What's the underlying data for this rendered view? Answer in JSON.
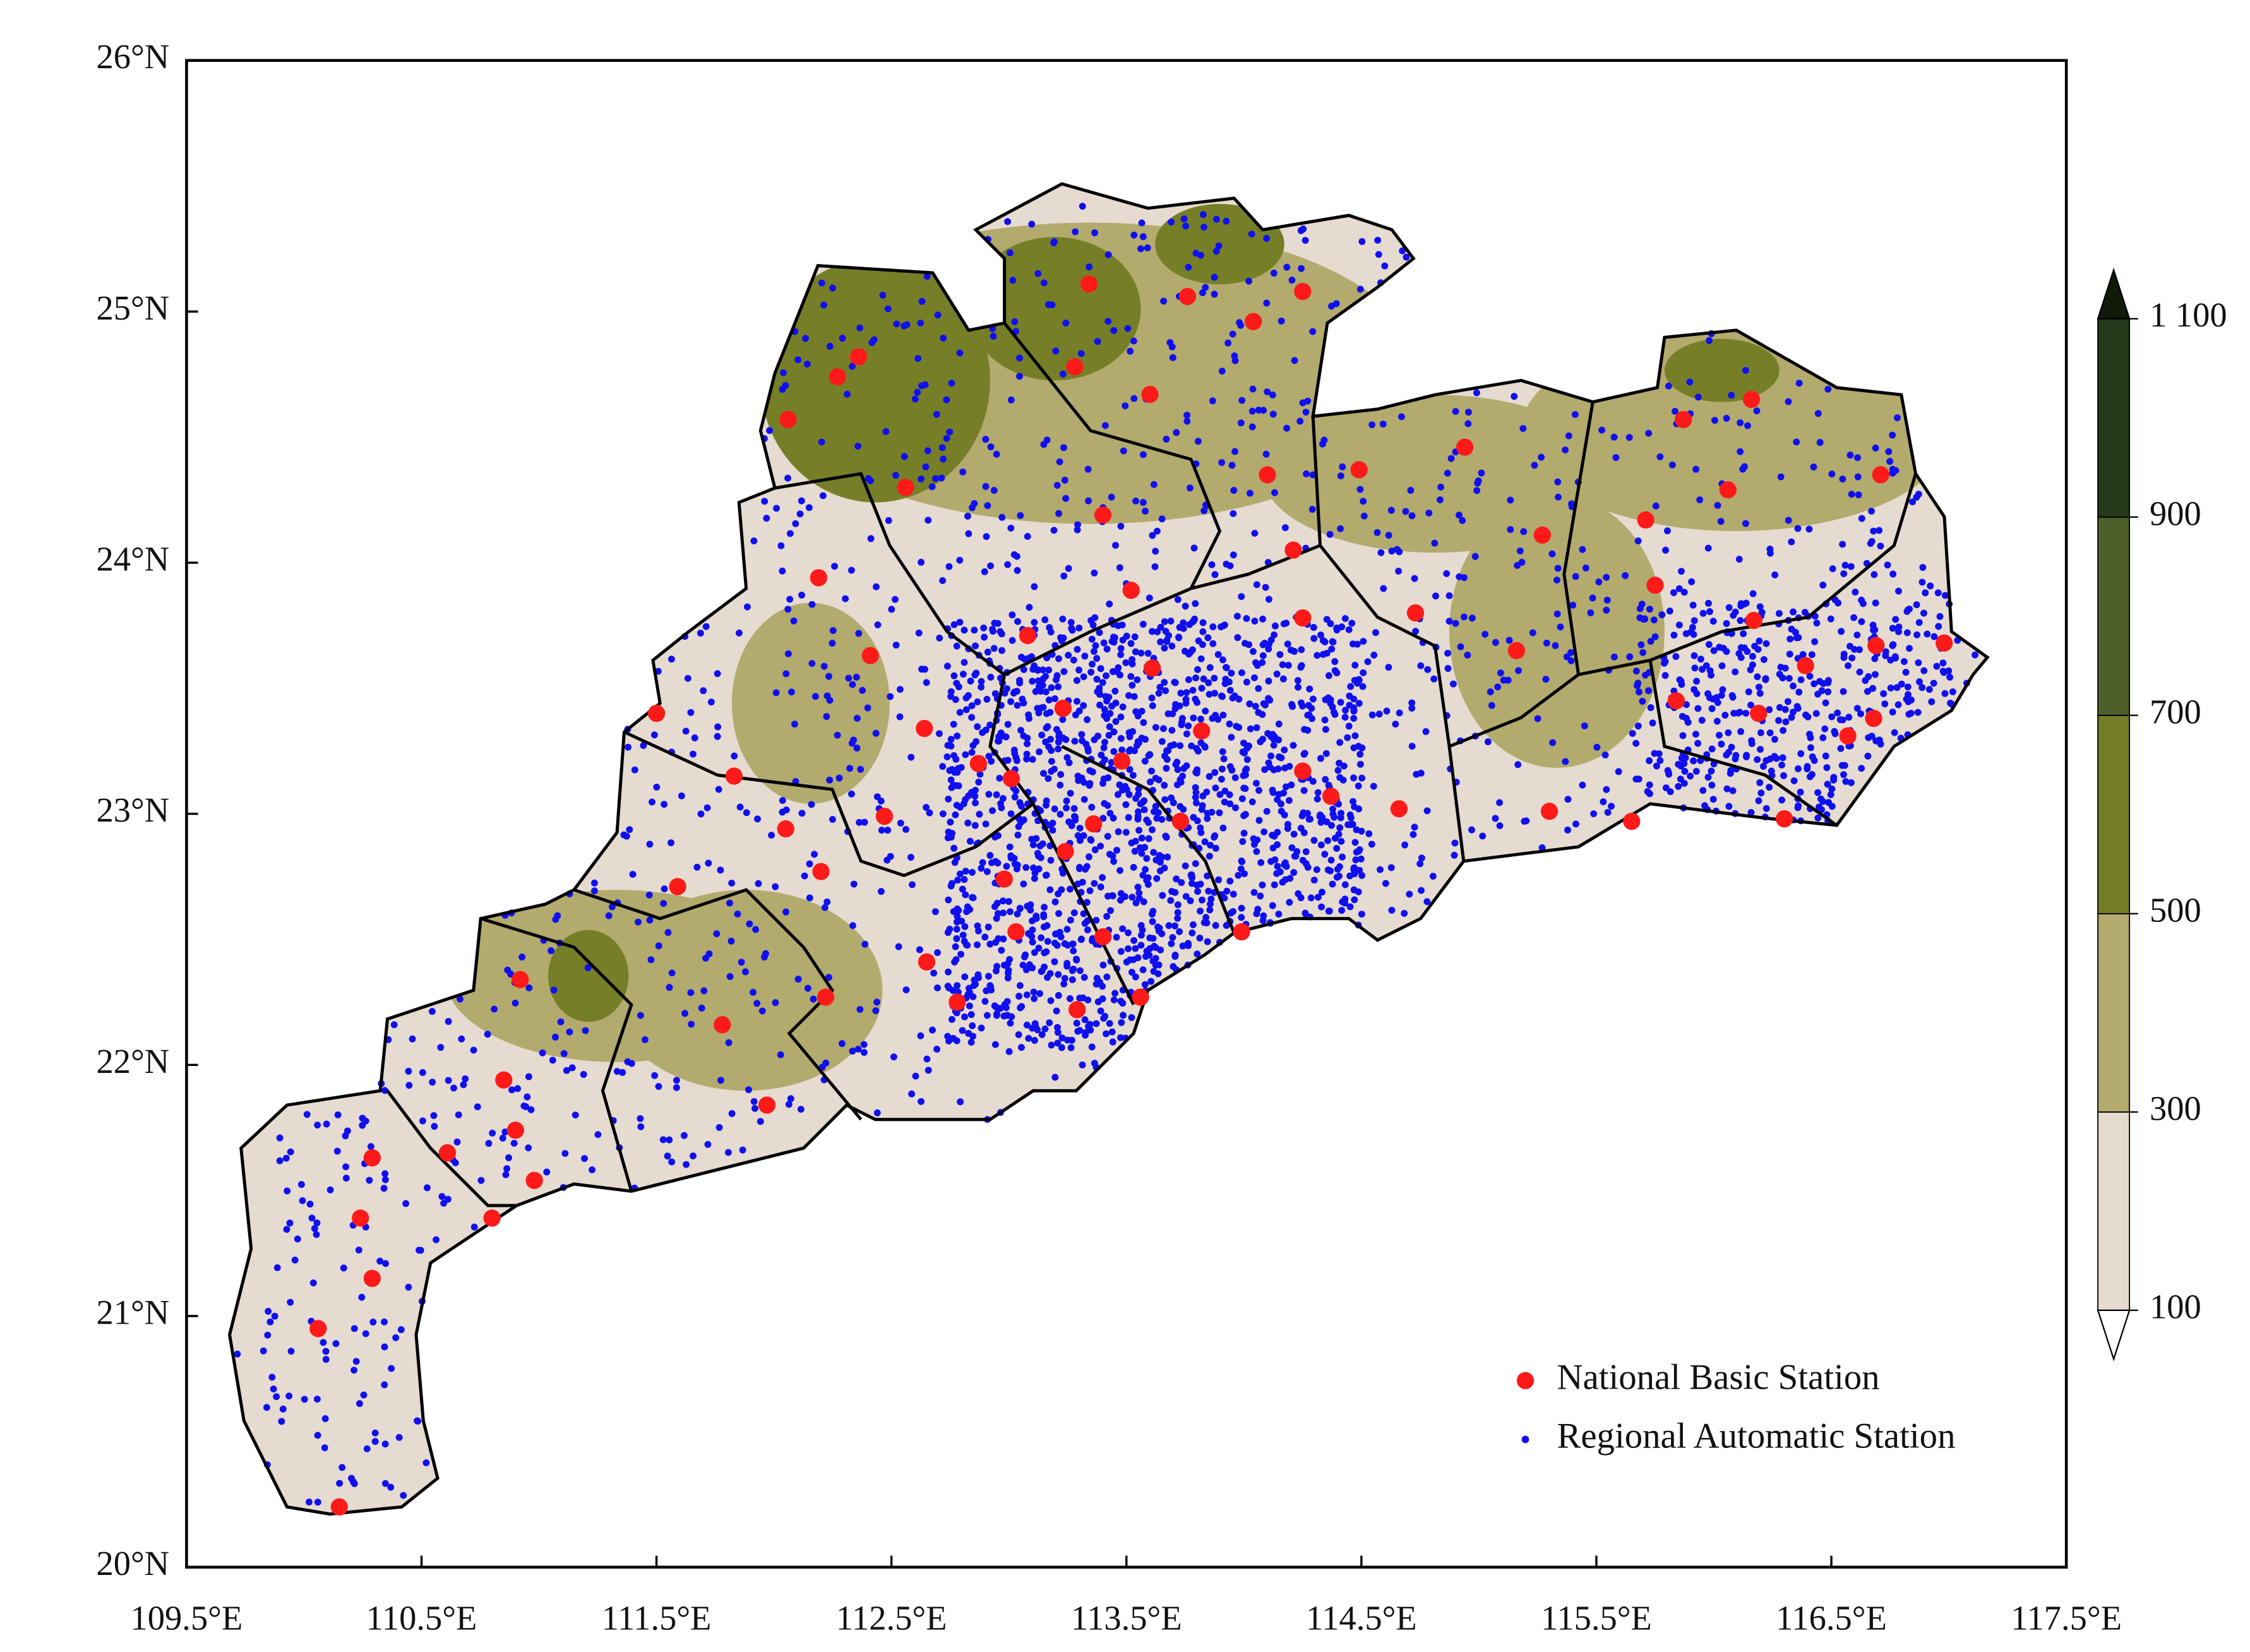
{
  "map": {
    "xlim": [
      109.5,
      117.5
    ],
    "ylim": [
      20,
      26
    ],
    "xticks": [
      {
        "value": 109.5,
        "label": "109.5°E"
      },
      {
        "value": 110.5,
        "label": "110.5°E"
      },
      {
        "value": 111.5,
        "label": "111.5°E"
      },
      {
        "value": 112.5,
        "label": "112.5°E"
      },
      {
        "value": 113.5,
        "label": "113.5°E"
      },
      {
        "value": 114.5,
        "label": "114.5°E"
      },
      {
        "value": 115.5,
        "label": "115.5°E"
      },
      {
        "value": 116.5,
        "label": "116.5°E"
      },
      {
        "value": 117.5,
        "label": "117.5°E"
      }
    ],
    "yticks": [
      {
        "value": 20,
        "label": "20°N"
      },
      {
        "value": 21,
        "label": "21°N"
      },
      {
        "value": 22,
        "label": "22°N"
      },
      {
        "value": 23,
        "label": "23°N"
      },
      {
        "value": 24,
        "label": "24°N"
      },
      {
        "value": 25,
        "label": "25°N"
      },
      {
        "value": 26,
        "label": "26°N"
      }
    ],
    "colorbar": {
      "ticks": [
        100,
        300,
        500,
        700,
        900,
        {
          "value": 1100,
          "label": "1 100"
        }
      ],
      "colors": [
        "#e6dbd0",
        "#b3aa6e",
        "#767f27",
        "#4d6029",
        "#26391a"
      ],
      "over_color": "#101a08",
      "under_color": "#ffffff"
    },
    "legend": [
      {
        "label": "National Basic Station",
        "color": "#ff1a1a"
      },
      {
        "label": "Regional Automatic Station",
        "color": "#1010ee"
      }
    ],
    "national_stations": {
      "lon": [
        113.34,
        113.76,
        114.25,
        114.04,
        113.28,
        113.6,
        112.36,
        112.27,
        112.06,
        112.56,
        113.4,
        114.1,
        114.49,
        114.94,
        115.87,
        116.16,
        116.06,
        116.71,
        115.71,
        115.27,
        114.21,
        112.19,
        113.52,
        114.25,
        114.73,
        115.75,
        116.17,
        113.08,
        112.41,
        115.16,
        116.39,
        116.69,
        116.98,
        113.61,
        111.5,
        115.84,
        116.19,
        116.68,
        116.57,
        112.64,
        113.23,
        113.82,
        112.87,
        113.01,
        113.48,
        114.25,
        111.83,
        114.37,
        114.66,
        115.3,
        115.65,
        112.47,
        112.05,
        113.36,
        113.73,
        116.3,
        112.2,
        112.98,
        113.24,
        111.59,
        113.03,
        113.4,
        113.99,
        112.65,
        110.92,
        112.22,
        113.56,
        113.29,
        112.78,
        111.78,
        110.85,
        110.9,
        111.97,
        110.29,
        110.61,
        110.98,
        110.8,
        110.24,
        110.29,
        110.06,
        110.15
      ],
      "lat": [
        25.11,
        25.06,
        25.08,
        24.96,
        24.78,
        24.67,
        24.82,
        24.74,
        24.57,
        24.3,
        24.19,
        24.35,
        24.37,
        24.46,
        24.57,
        24.65,
        24.29,
        24.35,
        24.17,
        24.11,
        24.05,
        23.94,
        23.89,
        23.78,
        23.8,
        23.91,
        23.77,
        23.71,
        23.63,
        23.65,
        23.59,
        23.67,
        23.68,
        23.58,
        23.4,
        23.45,
        23.4,
        23.38,
        23.31,
        23.34,
        23.42,
        23.33,
        23.2,
        23.14,
        23.21,
        23.17,
        23.15,
        23.07,
        23.02,
        23.01,
        22.97,
        22.99,
        22.94,
        22.96,
        22.97,
        22.98,
        22.77,
        22.74,
        22.85,
        22.71,
        22.53,
        22.51,
        22.53,
        22.41,
        22.34,
        22.27,
        22.27,
        22.22,
        22.25,
        22.16,
        21.94,
        21.74,
        21.84,
        21.63,
        21.65,
        21.54,
        21.39,
        21.39,
        21.15,
        20.95,
        20.24
      ]
    }
  }
}
